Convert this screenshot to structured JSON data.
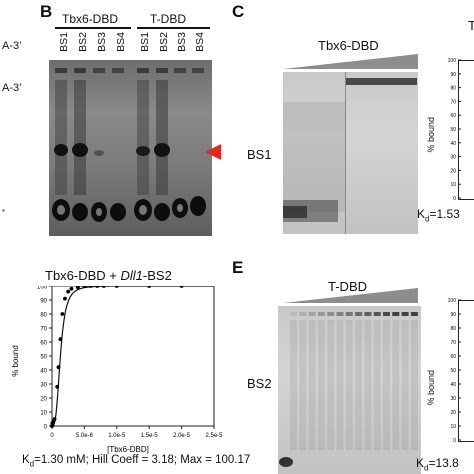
{
  "left_partial": {
    "label1": "A-3’",
    "label2": "A-3’"
  },
  "panel_b": {
    "letter": "B",
    "group1": "Tbx6-DBD",
    "group2": "T-DBD",
    "lanes": [
      "BS1",
      "BS2",
      "BS3",
      "BS4",
      "BS1",
      "BS2",
      "BS3",
      "BS4"
    ],
    "arrow_color": "#e8261e"
  },
  "panel_c": {
    "letter": "C",
    "title": "Tbx6-DBD",
    "row_label": "BS1",
    "kd_partial": "K",
    "kd_sub": "d",
    "kd_rest": "=1.53",
    "right_title_partial": "T",
    "ylabel": "% bound",
    "yticks": [
      "100",
      "90",
      "80",
      "70",
      "60",
      "50",
      "40",
      "30",
      "20",
      "10",
      "0"
    ]
  },
  "panel_d": {
    "title_prefix": "Tbx6-DBD + ",
    "title_italic": "Dll1",
    "title_suffix": "-BS2",
    "footer_k": "K",
    "footer_sub": "d",
    "footer_rest": "=1.30 mM; Hill Coeff = 3.18; Max = 100.17"
  },
  "panel_e": {
    "letter": "E",
    "title": "T-DBD",
    "row_label": "BS2",
    "kd_partial": "K",
    "kd_sub": "d",
    "kd_rest": "=13.8",
    "ylabel": "% bound",
    "yticks": [
      "100",
      "90",
      "80",
      "70",
      "60",
      "50",
      "40",
      "30",
      "20",
      "10",
      "0"
    ]
  },
  "chart_data": {
    "type": "scatter",
    "title": "Tbx6-DBD + Dll1-BS2",
    "xlabel": "[Tbx6-DBD]",
    "ylabel": "% bound",
    "xlim": [
      0,
      2.5e-05
    ],
    "ylim": [
      0,
      100
    ],
    "xticks": [
      "0",
      "5.0e-6",
      "1.0e-5",
      "1.5e-5",
      "2.0e-5",
      "2.5e-5"
    ],
    "xtick_values": [
      0,
      5e-06,
      1e-05,
      1.5e-05,
      2e-05,
      2.5e-05
    ],
    "yticks": [
      "0",
      "10",
      "20",
      "30",
      "40",
      "50",
      "60",
      "70",
      "80",
      "90",
      "100"
    ],
    "ytick_values": [
      0,
      10,
      20,
      30,
      40,
      50,
      60,
      70,
      80,
      90,
      100
    ],
    "points": [
      {
        "x": 0,
        "y": 0
      },
      {
        "x": 5e-08,
        "y": 2
      },
      {
        "x": 1e-07,
        "y": 1
      },
      {
        "x": 2e-07,
        "y": 3
      },
      {
        "x": 4e-07,
        "y": 5
      },
      {
        "x": 8e-07,
        "y": 28
      },
      {
        "x": 1e-06,
        "y": 42
      },
      {
        "x": 1.3e-06,
        "y": 62
      },
      {
        "x": 1.6e-06,
        "y": 80
      },
      {
        "x": 2e-06,
        "y": 91
      },
      {
        "x": 2.5e-06,
        "y": 96
      },
      {
        "x": 3e-06,
        "y": 98
      },
      {
        "x": 4e-06,
        "y": 99
      },
      {
        "x": 5e-06,
        "y": 100
      },
      {
        "x": 6e-06,
        "y": 100
      },
      {
        "x": 7e-06,
        "y": 100
      },
      {
        "x": 8e-06,
        "y": 100
      },
      {
        "x": 1e-05,
        "y": 100
      },
      {
        "x": 1.5e-05,
        "y": 100
      },
      {
        "x": 2e-05,
        "y": 100
      }
    ],
    "fit": {
      "kd": 1.3e-06,
      "hill": 3.18,
      "max": 100.17
    }
  }
}
